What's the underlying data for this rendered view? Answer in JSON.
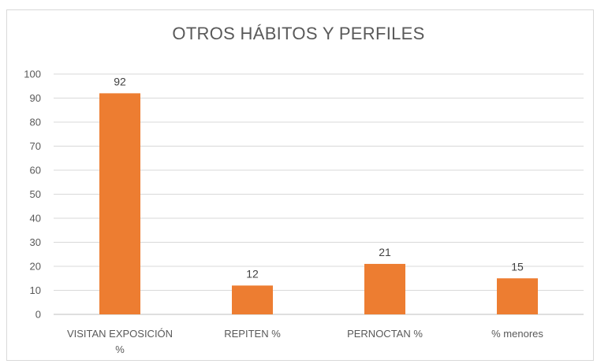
{
  "chart_data": {
    "type": "bar",
    "title": "OTROS HÁBITOS Y PERFILES",
    "categories": [
      [
        "VISITAN EXPOSICIÓN",
        "%"
      ],
      [
        "REPITEN %"
      ],
      [
        "PERNOCTAN  %"
      ],
      [
        "% menores"
      ]
    ],
    "values": [
      92,
      12,
      21,
      15
    ],
    "data_labels": [
      "92",
      "12",
      "21",
      "15"
    ],
    "ylim": [
      0,
      100
    ],
    "yticks": [
      0,
      10,
      20,
      30,
      40,
      50,
      60,
      70,
      80,
      90,
      100
    ],
    "grid": true,
    "legend": "none",
    "colors": {
      "bar": "#ED7D31",
      "grid": "#d9d9d9",
      "axis": "#bfbfbf",
      "text": "#595959"
    }
  }
}
